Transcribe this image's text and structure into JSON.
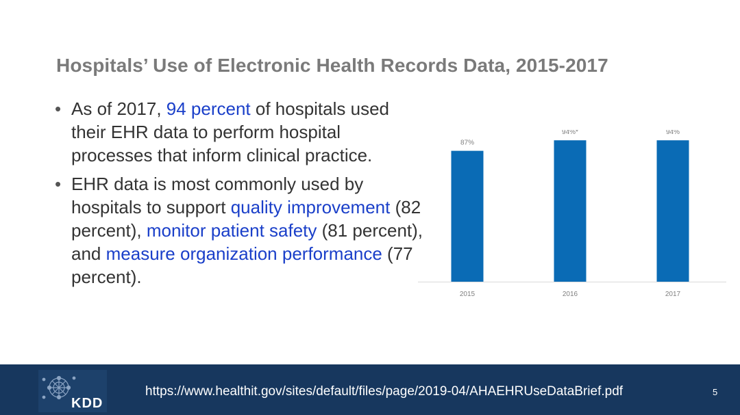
{
  "slide": {
    "title": "Hospitals’ Use of Electronic Health Records Data, 2015-2017",
    "page_number": "5"
  },
  "bullets": [
    {
      "segments": [
        {
          "text": "As of 2017, ",
          "highlight": false
        },
        {
          "text": "94 percent",
          "highlight": true
        },
        {
          "text": " of hospitals used their EHR data to perform hospital processes that inform clinical practice.",
          "highlight": false
        }
      ]
    },
    {
      "segments": [
        {
          "text": "EHR data is most commonly used by hospitals to support ",
          "highlight": false
        },
        {
          "text": "quality improvement",
          "highlight": true
        },
        {
          "text": " (82 percent), ",
          "highlight": false
        },
        {
          "text": "monitor patient safety",
          "highlight": true
        },
        {
          "text": " (81 percent), and ",
          "highlight": false
        },
        {
          "text": "measure organization performance",
          "highlight": true
        },
        {
          "text": " (77 percent).",
          "highlight": false
        }
      ]
    }
  ],
  "chart_data": {
    "type": "bar",
    "categories": [
      "2015",
      "2016",
      "2017"
    ],
    "values": [
      87,
      94,
      94
    ],
    "data_labels": [
      "87%",
      "94%*",
      "94%"
    ],
    "title": "",
    "xlabel": "",
    "ylabel": "",
    "ylim": [
      0,
      100
    ],
    "grid": false,
    "bar_color": "#0a6bb5"
  },
  "footer": {
    "source_url": "https://www.healthit.gov/sites/default/files/page/2019-04/AHAEHRUseDataBrief.pdf",
    "logo_text": "KDD",
    "background_color": "#17375e"
  },
  "colors": {
    "title": "#7a7a7a",
    "body_text": "#333333",
    "highlight": "#1a3fc9"
  }
}
